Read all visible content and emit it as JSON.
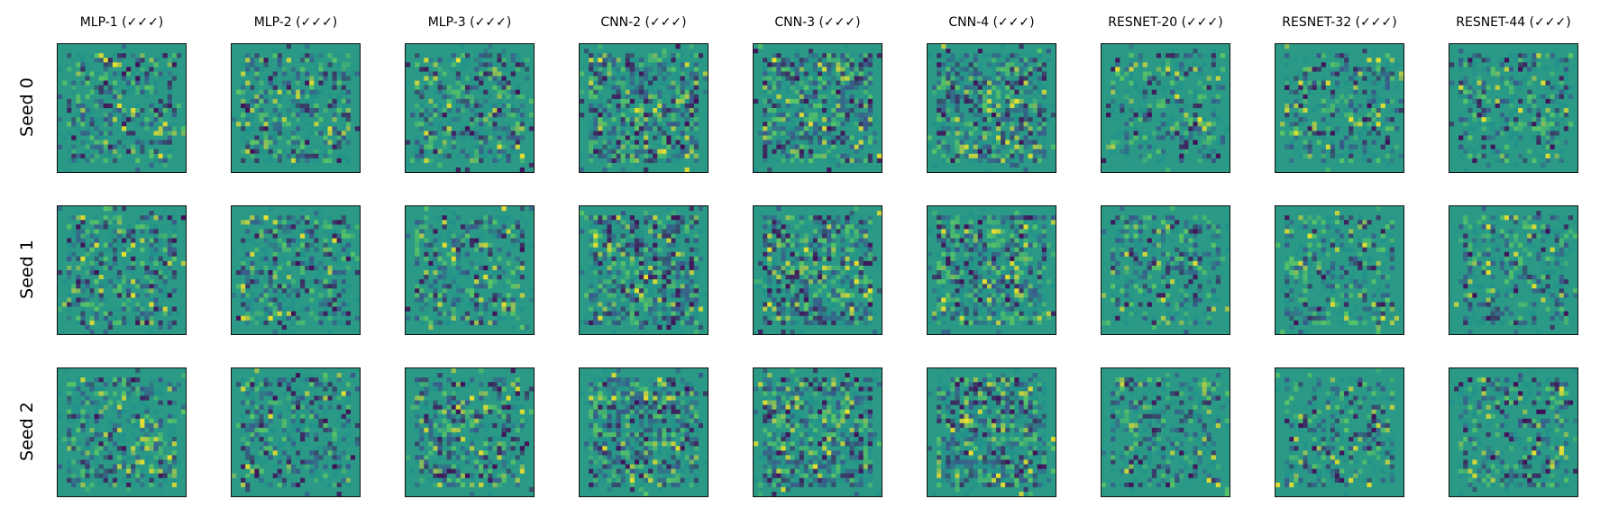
{
  "figure": {
    "columns": [
      "MLP-1 (✓✓✓)",
      "MLP-2 (✓✓✓)",
      "MLP-3 (✓✓✓)",
      "CNN-2 (✓✓✓)",
      "CNN-3 (✓✓✓)",
      "CNN-4 (✓✓✓)",
      "RESNET-20 (✓✓✓)",
      "RESNET-32 (✓✓✓)",
      "RESNET-44 (✓✓✓)"
    ],
    "rows": [
      "Seed 0",
      "Seed 1",
      "Seed 2"
    ],
    "colormap": [
      "#440154",
      "#3b528b",
      "#21918c",
      "#5ec962",
      "#fde725"
    ],
    "background_color": "#2a9a86"
  }
}
